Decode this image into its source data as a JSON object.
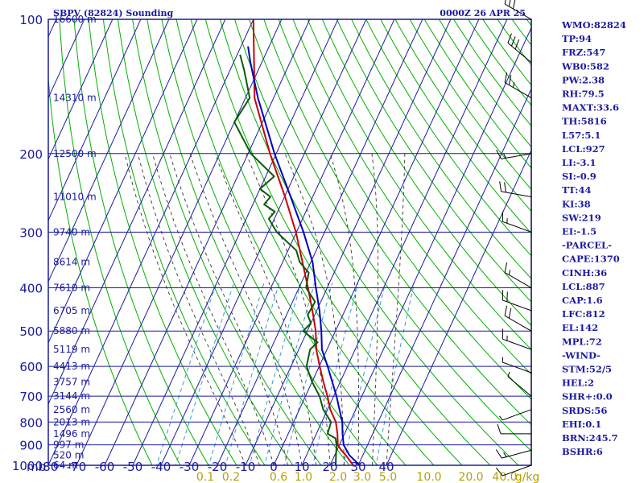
{
  "header": {
    "station": "SBPV (82824) Sounding",
    "time": "0000Z 26 APR 25"
  },
  "colors": {
    "grid": "#1a1aa0",
    "dry_adiabat": "#00b000",
    "moist_adiabat": "#333333",
    "mixing_ratio": "#3a9ad0",
    "temperature": "#cc0000",
    "dewpoint": "#0a5a0a",
    "parcel": "#0000c0",
    "mixing_label": "#b8a000",
    "wind": "#000000"
  },
  "indices": [
    "WMO:82824",
    "TP:94",
    "FRZ:547",
    "WB0:582",
    "PW:2.38",
    "RH:79.5",
    "MAXT:33.6",
    "TH:5816",
    "L57:5.1",
    "LCL:927",
    "LI:-3.1",
    "SI:-0.9",
    "TT:44",
    "KI:38",
    "SW:219",
    "EI:-1.5",
    "-PARCEL-",
    "CAPE:1370",
    "CINH:36",
    "LCL:887",
    "CAP:1.6",
    "LFC:812",
    "EL:142",
    "MPL:72",
    "-WIND-",
    "STM:52/5",
    "HEL:2",
    "SHR+:0.0",
    "SRDS:56",
    "EHI:0.1",
    "BRN:245.7",
    "BSHR:6"
  ],
  "chart_data": {
    "type": "skew-t",
    "title": "SBPV (82824) Sounding",
    "subtitle": "0000Z 26 APR 25",
    "pressure_levels": [
      100,
      200,
      300,
      400,
      500,
      600,
      700,
      800,
      900,
      1000
    ],
    "pressure_unit_label": "mb",
    "temperature_ticks": [
      -80,
      -70,
      -60,
      -50,
      -40,
      -30,
      -20,
      -10,
      0,
      10,
      20,
      30,
      40
    ],
    "xlim": [
      -80,
      40
    ],
    "ylim": [
      1000,
      100
    ],
    "heights": [
      {
        "p": 100,
        "label": "16600 m"
      },
      {
        "p": 150,
        "label": "14310 m"
      },
      {
        "p": 200,
        "label": "12500 m"
      },
      {
        "p": 250,
        "label": "11010 m"
      },
      {
        "p": 300,
        "label": "9740 m"
      },
      {
        "p": 350,
        "label": "8614 m"
      },
      {
        "p": 400,
        "label": "7610 m"
      },
      {
        "p": 450,
        "label": "6705 m"
      },
      {
        "p": 500,
        "label": "5880 m"
      },
      {
        "p": 550,
        "label": "5119 m"
      },
      {
        "p": 600,
        "label": "4413 m"
      },
      {
        "p": 650,
        "label": "3757 m"
      },
      {
        "p": 700,
        "label": "3144 m"
      },
      {
        "p": 750,
        "label": "2560 m"
      },
      {
        "p": 800,
        "label": "2013 m"
      },
      {
        "p": 850,
        "label": "1496 m"
      },
      {
        "p": 900,
        "label": "997 m"
      },
      {
        "p": 950,
        "label": "520 m"
      },
      {
        "p": 1000,
        "label": "64 m"
      }
    ],
    "mixing_ratio_labels": [
      "0.1",
      "0.2",
      "0.6",
      "1.0",
      "2.0",
      "3.0",
      "5.0",
      "10.0",
      "20.0",
      "40.0",
      "g/kg"
    ],
    "series": [
      {
        "name": "Temperature",
        "points": [
          [
            1000,
            28.2
          ],
          [
            980,
            26.6
          ],
          [
            950,
            24.0
          ],
          [
            925,
            21.5
          ],
          [
            900,
            19.4
          ],
          [
            850,
            17.5
          ],
          [
            800,
            15.0
          ],
          [
            750,
            11.0
          ],
          [
            700,
            7.8
          ],
          [
            650,
            4.0
          ],
          [
            600,
            0.2
          ],
          [
            550,
            -3.8
          ],
          [
            500,
            -7.0
          ],
          [
            450,
            -11.5
          ],
          [
            400,
            -16.8
          ],
          [
            350,
            -23.0
          ],
          [
            300,
            -30.2
          ],
          [
            250,
            -39.8
          ],
          [
            200,
            -52.2
          ],
          [
            150,
            -66.8
          ],
          [
            100,
            -80.0
          ]
        ]
      },
      {
        "name": "Dewpoint",
        "points": [
          [
            1000,
            22.0
          ],
          [
            950,
            20.5
          ],
          [
            900,
            19.0
          ],
          [
            870,
            17.5
          ],
          [
            850,
            14.0
          ],
          [
            800,
            13.3
          ],
          [
            750,
            8.5
          ],
          [
            700,
            5.0
          ],
          [
            650,
            0.0
          ],
          [
            600,
            -4.5
          ],
          [
            550,
            -6.0
          ],
          [
            530,
            -4.5
          ],
          [
            500,
            -11.5
          ],
          [
            480,
            -10.0
          ],
          [
            460,
            -12.5
          ],
          [
            430,
            -12.0
          ],
          [
            400,
            -17.5
          ],
          [
            370,
            -19.0
          ],
          [
            350,
            -24.0
          ],
          [
            330,
            -27.0
          ],
          [
            300,
            -37.0
          ],
          [
            280,
            -42.0
          ],
          [
            270,
            -41.0
          ],
          [
            260,
            -46.0
          ],
          [
            250,
            -45.0
          ],
          [
            240,
            -50.0
          ],
          [
            225,
            -47.0
          ],
          [
            200,
            -59.0
          ],
          [
            170,
            -70.0
          ],
          [
            150,
            -68.5
          ],
          [
            130,
            -75.0
          ],
          [
            120,
            -79.0
          ]
        ]
      },
      {
        "name": "Parcel",
        "points": [
          [
            1000,
            30.5
          ],
          [
            950,
            25.3
          ],
          [
            900,
            21.5
          ],
          [
            850,
            19.3
          ],
          [
            800,
            17.3
          ],
          [
            700,
            11.0
          ],
          [
            600,
            3.0
          ],
          [
            550,
            -1.8
          ],
          [
            500,
            -5.0
          ],
          [
            450,
            -9.0
          ],
          [
            400,
            -14.0
          ],
          [
            350,
            -19.4
          ],
          [
            300,
            -27.5
          ],
          [
            250,
            -37.8
          ],
          [
            200,
            -50.6
          ],
          [
            150,
            -65.6
          ],
          [
            125,
            -74.0
          ],
          [
            115,
            -77.5
          ]
        ]
      }
    ],
    "wind_barbs": [
      {
        "p": 1000,
        "dir": 250,
        "kt": 10
      },
      {
        "p": 925,
        "dir": 255,
        "kt": 15
      },
      {
        "p": 850,
        "dir": 270,
        "kt": 10
      },
      {
        "p": 750,
        "dir": 250,
        "kt": 5
      },
      {
        "p": 700,
        "dir": 310,
        "kt": 5
      },
      {
        "p": 620,
        "dir": 290,
        "kt": 5
      },
      {
        "p": 550,
        "dir": 290,
        "kt": 15
      },
      {
        "p": 500,
        "dir": 300,
        "kt": 20
      },
      {
        "p": 450,
        "dir": 290,
        "kt": 20
      },
      {
        "p": 400,
        "dir": 300,
        "kt": 15
      },
      {
        "p": 300,
        "dir": 290,
        "kt": 15
      },
      {
        "p": 250,
        "dir": 280,
        "kt": 20
      },
      {
        "p": 200,
        "dir": 260,
        "kt": 15
      },
      {
        "p": 150,
        "dir": 300,
        "kt": 25
      },
      {
        "p": 125,
        "dir": 310,
        "kt": 30
      },
      {
        "p": 100,
        "dir": 300,
        "kt": 30
      }
    ]
  }
}
